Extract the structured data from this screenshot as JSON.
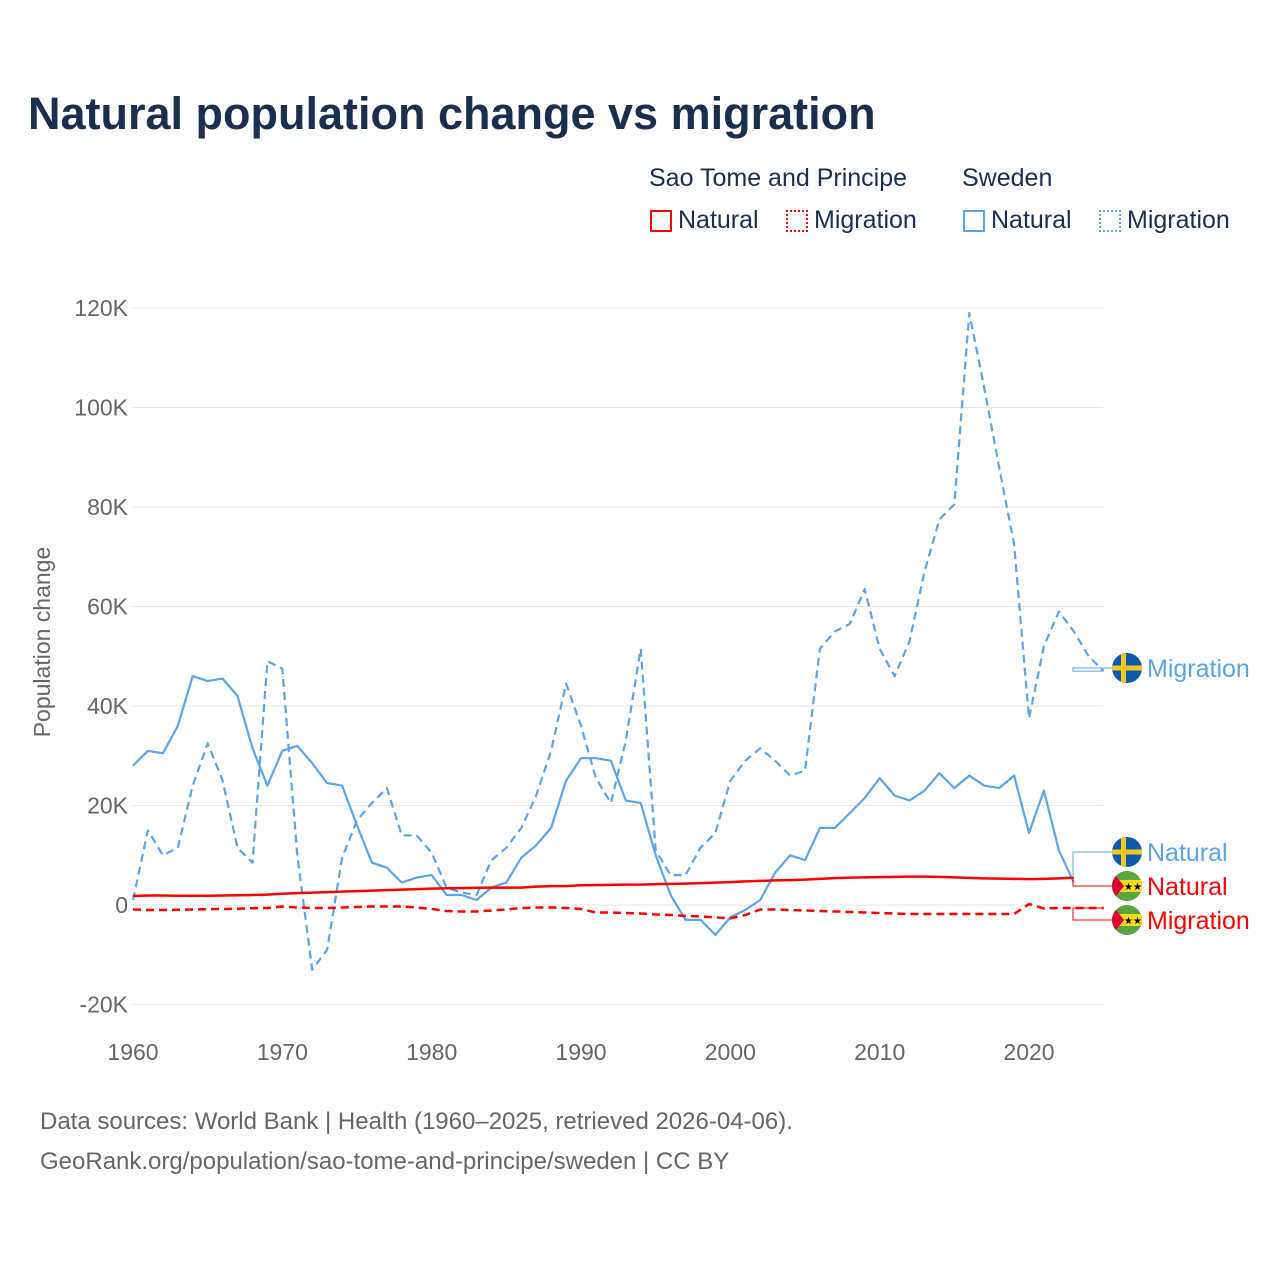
{
  "chart_data": {
    "type": "line",
    "title": "Natural population change vs migration",
    "xlabel": "",
    "ylabel": "Population change",
    "xlim": [
      1960,
      2025
    ],
    "ylim": [
      -20000,
      120000
    ],
    "xticks": [
      1960,
      1970,
      1980,
      1990,
      2000,
      2010,
      2020
    ],
    "xtick_labels": [
      "1960",
      "1970",
      "1980",
      "1990",
      "2000",
      "2010",
      "2020"
    ],
    "yticks": [
      -20000,
      0,
      20000,
      40000,
      60000,
      80000,
      100000,
      120000
    ],
    "ytick_labels": [
      "-20K",
      "0",
      "20K",
      "40K",
      "60K",
      "80K",
      "100K",
      "120K"
    ],
    "grid": true,
    "legend": {
      "placement": "top-right",
      "groups": [
        {
          "name": "Sao Tome and Principe",
          "items": [
            "Natural",
            "Migration"
          ]
        },
        {
          "name": "Sweden",
          "items": [
            "Natural",
            "Migration"
          ]
        }
      ]
    },
    "series": [
      {
        "name": "Sweden Migration",
        "label": "Migration",
        "country": "Sweden",
        "color": "#5ba4e8",
        "dash": true,
        "start": 1960,
        "values": [
          1000,
          15000,
          10000,
          11500,
          24000,
          32500,
          25000,
          11500,
          8500,
          49000,
          47500,
          10000,
          -13000,
          -9000,
          9500,
          17000,
          20500,
          23500,
          14000,
          14000,
          10500,
          3500,
          2500,
          2000,
          9000,
          11500,
          15500,
          22000,
          31000,
          44500,
          36000,
          25500,
          20500,
          33000,
          51500,
          11000,
          6000,
          6000,
          11500,
          14500,
          25000,
          29000,
          31500,
          29000,
          26000,
          27000,
          51500,
          55000,
          56500,
          63500,
          51500,
          46000,
          53000,
          67000,
          77500,
          80500,
          119000,
          104000,
          88000,
          72500,
          37500,
          52000,
          59000,
          55000,
          50000,
          47000
        ]
      },
      {
        "name": "Sweden Natural",
        "label": "Natural",
        "country": "Sweden",
        "color": "#5ba4e8",
        "dash": false,
        "start": 1960,
        "values": [
          28000,
          31000,
          30500,
          36000,
          46000,
          45000,
          45500,
          42000,
          31500,
          24000,
          31000,
          32000,
          28500,
          24500,
          24000,
          16000,
          8500,
          7500,
          4500,
          5500,
          6000,
          2000,
          2000,
          1000,
          3500,
          4500,
          9500,
          12000,
          15500,
          25000,
          29500,
          29500,
          29000,
          21000,
          20500,
          10000,
          2000,
          -3000,
          -3000,
          -6000,
          -2500,
          -1000,
          1000,
          6500,
          10000,
          9000,
          15500,
          15500,
          18500,
          21500,
          25500,
          22000,
          21000,
          23000,
          26500,
          23500,
          26000,
          24000,
          23500,
          26000,
          14500,
          23000,
          11000,
          4500
        ]
      },
      {
        "name": "Sao Tome and Principe Natural",
        "label": "Natural",
        "country": "Sao Tome and Principe",
        "color": "#ff0000",
        "dash": false,
        "start": 1960,
        "values": [
          1800,
          1900,
          1900,
          1850,
          1850,
          1850,
          1900,
          1950,
          2000,
          2100,
          2250,
          2400,
          2500,
          2600,
          2700,
          2800,
          2900,
          3000,
          3100,
          3200,
          3300,
          3350,
          3400,
          3450,
          3500,
          3500,
          3500,
          3700,
          3800,
          3800,
          3950,
          4000,
          4050,
          4100,
          4100,
          4200,
          4250,
          4300,
          4400,
          4500,
          4600,
          4750,
          4850,
          4950,
          5000,
          5100,
          5250,
          5400,
          5500,
          5550,
          5600,
          5650,
          5700,
          5700,
          5650,
          5550,
          5450,
          5350,
          5300,
          5250,
          5200,
          5250,
          5350,
          5500
        ]
      },
      {
        "name": "Sao Tome and Principe Migration",
        "label": "Migration",
        "country": "Sao Tome and Principe",
        "color": "#ff0000",
        "dash": true,
        "start": 1960,
        "values": [
          -900,
          -1000,
          -1000,
          -950,
          -900,
          -850,
          -800,
          -750,
          -650,
          -600,
          -300,
          -500,
          -600,
          -600,
          -500,
          -400,
          -300,
          -300,
          -300,
          -500,
          -800,
          -1200,
          -1300,
          -1300,
          -1100,
          -900,
          -600,
          -500,
          -500,
          -600,
          -800,
          -1500,
          -1500,
          -1600,
          -1700,
          -1900,
          -2000,
          -2200,
          -2300,
          -2500,
          -2700,
          -2000,
          -900,
          -900,
          -1000,
          -1100,
          -1200,
          -1300,
          -1400,
          -1500,
          -1600,
          -1700,
          -1800,
          -1800,
          -1800,
          -1800,
          -1800,
          -1800,
          -1800,
          -1800,
          200,
          -700,
          -600,
          -600,
          -600,
          -600
        ]
      }
    ]
  },
  "header": {
    "title": "Natural population change vs migration"
  },
  "legend": {
    "stp": "Sao Tome and Principe",
    "sweden": "Sweden",
    "natural": "Natural",
    "migration": "Migration"
  },
  "end_labels": [
    "Migration",
    "Natural",
    "Natural",
    "Migration"
  ],
  "footer": {
    "line1": "Data sources: World Bank | Health (1960–2025, retrieved 2026-04-06).",
    "line2": "GeoRank.org/population/sao-tome-and-principe/sweden | CC BY"
  }
}
